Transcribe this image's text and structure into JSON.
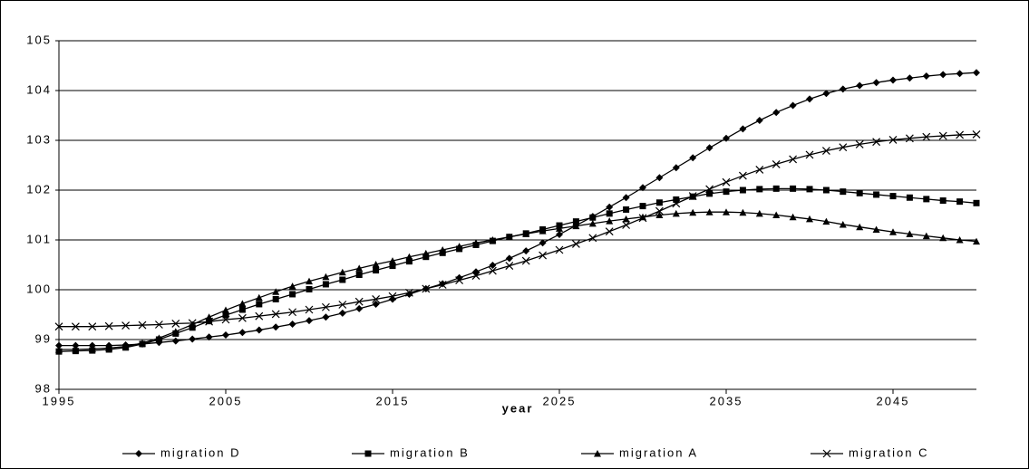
{
  "chart_data": {
    "type": "line",
    "x_label": "year",
    "x": [
      1995,
      1996,
      1997,
      1998,
      1999,
      2000,
      2001,
      2002,
      2003,
      2004,
      2005,
      2006,
      2007,
      2008,
      2009,
      2010,
      2011,
      2012,
      2013,
      2014,
      2015,
      2016,
      2017,
      2018,
      2019,
      2020,
      2021,
      2022,
      2023,
      2024,
      2025,
      2026,
      2027,
      2028,
      2029,
      2030,
      2031,
      2032,
      2033,
      2034,
      2035,
      2036,
      2037,
      2038,
      2039,
      2040,
      2041,
      2042,
      2043,
      2044,
      2045,
      2046,
      2047,
      2048,
      2049,
      2050
    ],
    "xlim": [
      1995,
      2050
    ],
    "xticks": [
      1995,
      2005,
      2015,
      2025,
      2035,
      2045
    ],
    "ylim": [
      98,
      105
    ],
    "yticks": [
      98,
      99,
      100,
      101,
      102,
      103,
      104,
      105
    ],
    "grid": true,
    "legend": "bottom",
    "series": [
      {
        "name": "migration D",
        "color": "#000000",
        "marker": "diamond",
        "values": [
          98.88,
          98.88,
          98.88,
          98.88,
          98.89,
          98.91,
          98.94,
          98.97,
          99.01,
          99.05,
          99.09,
          99.14,
          99.19,
          99.25,
          99.31,
          99.38,
          99.45,
          99.53,
          99.62,
          99.71,
          99.81,
          99.91,
          100.02,
          100.12,
          100.24,
          100.36,
          100.49,
          100.63,
          100.78,
          100.94,
          101.11,
          101.29,
          101.47,
          101.66,
          101.85,
          102.05,
          102.25,
          102.45,
          102.65,
          102.85,
          103.04,
          103.23,
          103.4,
          103.56,
          103.7,
          103.83,
          103.94,
          104.03,
          104.1,
          104.16,
          104.21,
          104.25,
          104.29,
          104.32,
          104.34,
          104.36
        ]
      },
      {
        "name": "migration B",
        "color": "#000000",
        "marker": "square",
        "values": [
          98.76,
          98.77,
          98.78,
          98.8,
          98.84,
          98.91,
          99.0,
          99.12,
          99.24,
          99.37,
          99.49,
          99.6,
          99.71,
          99.81,
          99.91,
          100.01,
          100.11,
          100.2,
          100.3,
          100.39,
          100.48,
          100.57,
          100.66,
          100.74,
          100.82,
          100.9,
          100.98,
          101.06,
          101.13,
          101.21,
          101.29,
          101.37,
          101.45,
          101.53,
          101.61,
          101.68,
          101.75,
          101.81,
          101.87,
          101.93,
          101.97,
          102.0,
          102.02,
          102.03,
          102.03,
          102.02,
          102.0,
          101.97,
          101.94,
          101.91,
          101.88,
          101.85,
          101.82,
          101.79,
          101.77,
          101.74
        ]
      },
      {
        "name": "migration A",
        "color": "#000000",
        "marker": "triangle",
        "values": [
          98.8,
          98.8,
          98.81,
          98.83,
          98.86,
          98.93,
          99.03,
          99.16,
          99.3,
          99.45,
          99.59,
          99.72,
          99.84,
          99.96,
          100.07,
          100.17,
          100.26,
          100.35,
          100.43,
          100.51,
          100.58,
          100.66,
          100.73,
          100.8,
          100.87,
          100.94,
          101.0,
          101.06,
          101.12,
          101.18,
          101.23,
          101.28,
          101.33,
          101.38,
          101.42,
          101.46,
          101.5,
          101.53,
          101.55,
          101.56,
          101.56,
          101.55,
          101.53,
          101.5,
          101.46,
          101.42,
          101.37,
          101.31,
          101.26,
          101.21,
          101.16,
          101.12,
          101.08,
          101.04,
          101.0,
          100.97
        ]
      },
      {
        "name": "migration C",
        "color": "#000000",
        "marker": "x",
        "values": [
          99.26,
          99.26,
          99.26,
          99.27,
          99.28,
          99.29,
          99.3,
          99.32,
          99.33,
          99.36,
          99.4,
          99.43,
          99.47,
          99.51,
          99.55,
          99.6,
          99.65,
          99.7,
          99.76,
          99.81,
          99.87,
          99.94,
          100.02,
          100.1,
          100.19,
          100.28,
          100.38,
          100.48,
          100.58,
          100.69,
          100.8,
          100.92,
          101.04,
          101.17,
          101.3,
          101.44,
          101.58,
          101.73,
          101.88,
          102.02,
          102.16,
          102.29,
          102.41,
          102.52,
          102.62,
          102.71,
          102.79,
          102.86,
          102.92,
          102.97,
          103.01,
          103.04,
          103.07,
          103.09,
          103.11,
          103.12
        ]
      }
    ]
  }
}
